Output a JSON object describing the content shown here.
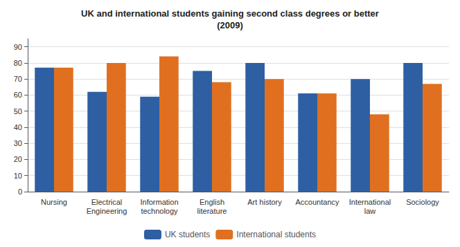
{
  "chart_data": {
    "type": "bar",
    "title": "UK and international students gaining second class degrees or better\n(2009)",
    "categories": [
      "Nursing",
      "Electrical\nEngineering",
      "Information\ntechnology",
      "English\nliterature",
      "Art history",
      "Accountancy",
      "International\nlaw",
      "Sociology"
    ],
    "series": [
      {
        "name": "UK students",
        "color": "#2E5FA3",
        "values": [
          77,
          62,
          59,
          75,
          80,
          61,
          70,
          80
        ]
      },
      {
        "name": "International students",
        "color": "#E07020",
        "values": [
          77,
          80,
          84,
          68,
          70,
          61,
          48,
          67
        ]
      }
    ],
    "ylim": [
      0,
      95
    ],
    "yticks": [
      0,
      10,
      20,
      30,
      40,
      50,
      60,
      70,
      80,
      90
    ],
    "grid": true,
    "legend": "bottom"
  }
}
